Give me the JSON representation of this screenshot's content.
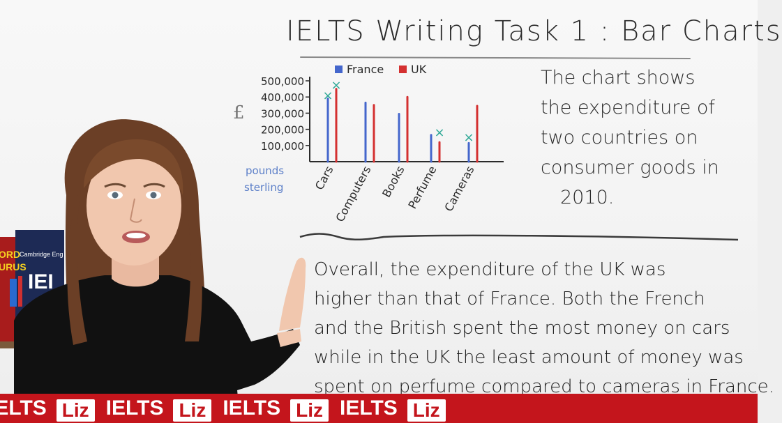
{
  "title": "IELTS Writing Task 1 : Bar Charts",
  "description_lines": [
    "The chart shows",
    "the expenditure of",
    "two countries on",
    "consumer goods in",
    "2010."
  ],
  "paragraph_lines": [
    "Overall, the expenditure of the UK was",
    "higher than that of France. Both the French",
    "and the British spent the most money on cars",
    "while in the UK the least amount of money was",
    "spent on perfume compared to cameras in France."
  ],
  "banner": {
    "ielts": "IELTS",
    "liz": "Liz"
  },
  "books": {
    "left_label": "ORD",
    "left_label2": "URUS",
    "right_label": "Cambridge Eng",
    "right_big": "IEI"
  },
  "chart_data": {
    "type": "bar",
    "currency_symbol": "£",
    "ylabel_lines": [
      "pounds",
      "sterling"
    ],
    "yticks": [
      "500,000",
      "400,000",
      "300,000",
      "200,000",
      "100,000"
    ],
    "ytick_values": [
      500000,
      400000,
      300000,
      200000,
      100000
    ],
    "ylim": [
      0,
      500000
    ],
    "categories": [
      "Cars",
      "Computers",
      "Books",
      "Perfume",
      "Cameras"
    ],
    "series": [
      {
        "name": "France",
        "color": "#4466cc",
        "values": [
          390000,
          365000,
          295000,
          165000,
          115000
        ]
      },
      {
        "name": "UK",
        "color": "#d43030",
        "values": [
          450000,
          350000,
          400000,
          120000,
          345000
        ]
      }
    ],
    "annotations": [
      {
        "mark": "×",
        "color": "#2fa896",
        "category": "Cars",
        "series": "France",
        "y": 410000
      },
      {
        "mark": "×",
        "color": "#2fa896",
        "category": "Cars",
        "series": "UK",
        "y": 475000
      },
      {
        "mark": "×",
        "color": "#2fa896",
        "category": "Perfume",
        "series": "UK",
        "y": 180000
      },
      {
        "mark": "×",
        "color": "#2fa896",
        "category": "Cameras",
        "series": "France",
        "y": 150000
      }
    ],
    "legend_position": "top",
    "grid": false
  }
}
